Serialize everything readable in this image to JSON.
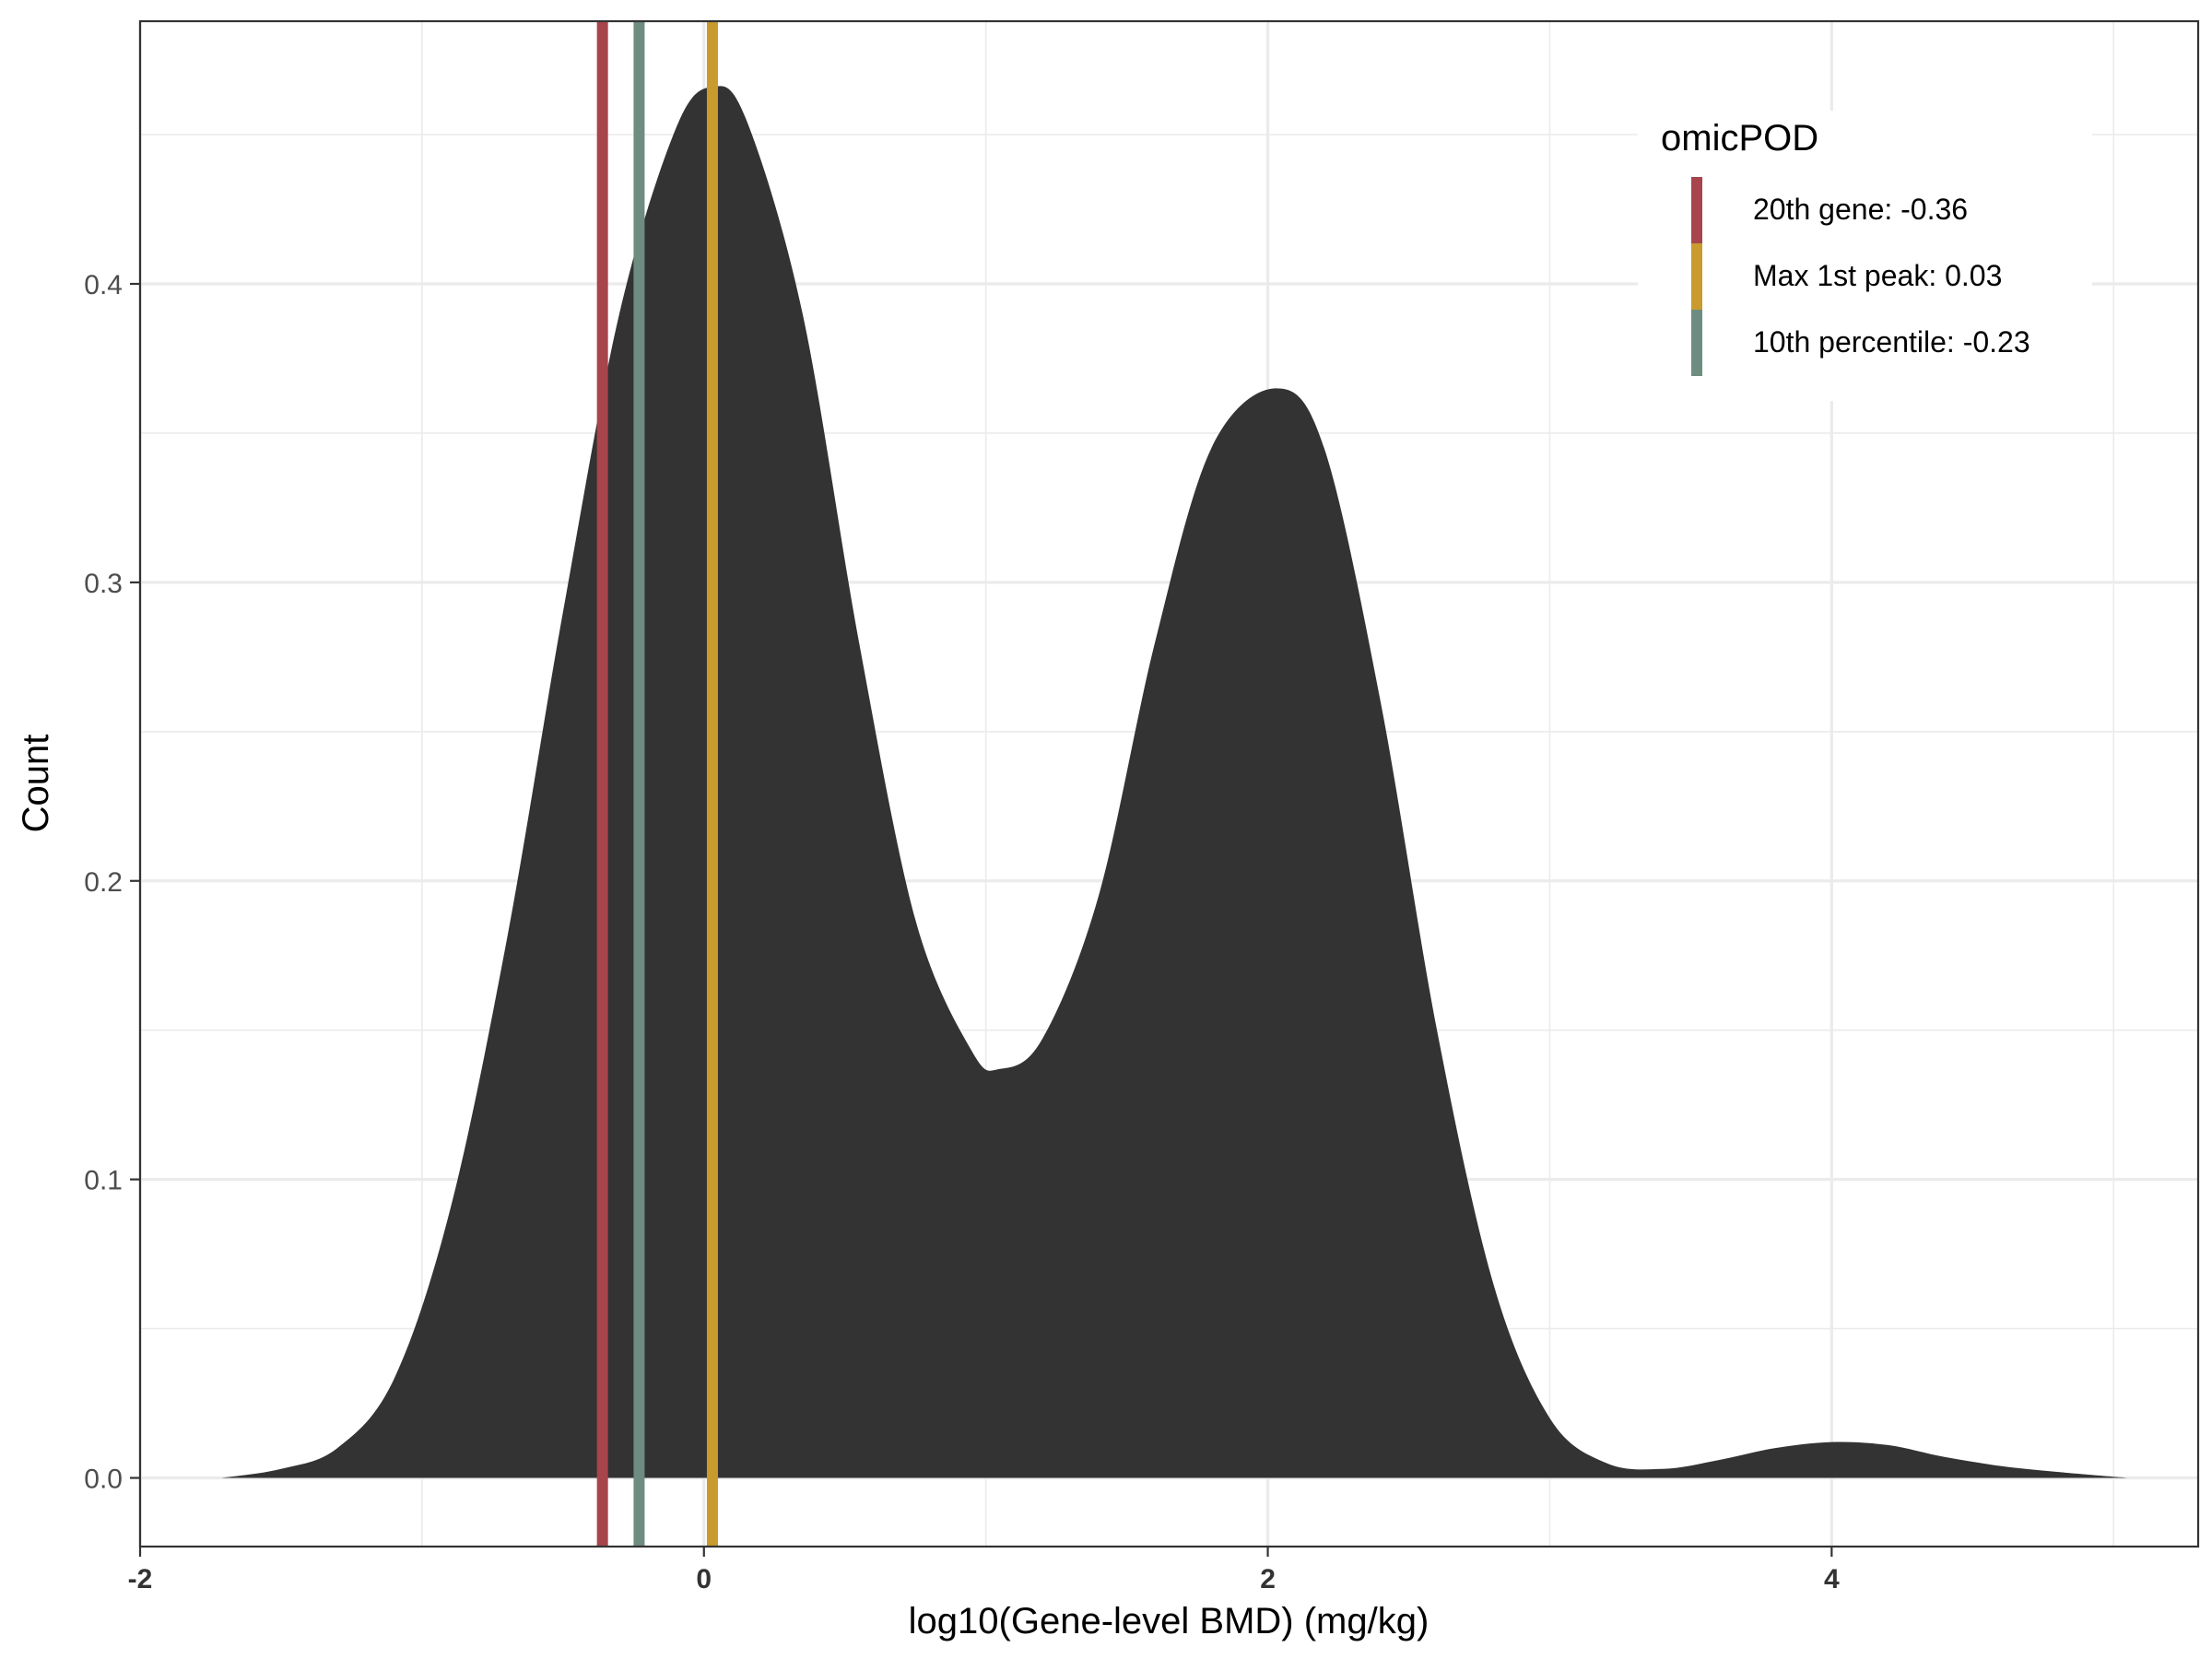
{
  "chart_data": {
    "type": "area",
    "xlabel": "log10(Gene-level BMD) (mg/kg)",
    "ylabel": "Count",
    "xlim": [
      -2.0,
      5.3
    ],
    "ylim": [
      -0.023,
      0.488
    ],
    "x_ticks": [
      -2,
      0,
      2,
      4
    ],
    "x_tick_labels": [
      "-2",
      "0",
      "2",
      "4"
    ],
    "y_ticks": [
      0.0,
      0.1,
      0.2,
      0.3,
      0.4
    ],
    "y_tick_labels": [
      "0.0",
      "0.1",
      "0.2",
      "0.3",
      "0.4"
    ],
    "x_minor_ticks": [
      -1,
      1,
      3,
      5
    ],
    "y_minor_ticks": [
      0.05,
      0.15,
      0.25,
      0.35,
      0.45
    ],
    "grid": true,
    "density_fill_color": "#333333",
    "density_points": [
      [
        -1.71,
        0.0
      ],
      [
        -1.5,
        0.003
      ],
      [
        -1.3,
        0.01
      ],
      [
        -1.1,
        0.033
      ],
      [
        -0.9,
        0.09
      ],
      [
        -0.7,
        0.18
      ],
      [
        -0.5,
        0.29
      ],
      [
        -0.3,
        0.39
      ],
      [
        -0.1,
        0.452
      ],
      [
        0.03,
        0.466
      ],
      [
        0.15,
        0.455
      ],
      [
        0.35,
        0.39
      ],
      [
        0.55,
        0.28
      ],
      [
        0.75,
        0.187
      ],
      [
        0.95,
        0.143
      ],
      [
        1.05,
        0.137
      ],
      [
        1.2,
        0.147
      ],
      [
        1.4,
        0.195
      ],
      [
        1.6,
        0.28
      ],
      [
        1.8,
        0.345
      ],
      [
        2.03,
        0.365
      ],
      [
        2.2,
        0.345
      ],
      [
        2.4,
        0.26
      ],
      [
        2.6,
        0.15
      ],
      [
        2.8,
        0.065
      ],
      [
        3.0,
        0.02
      ],
      [
        3.2,
        0.005
      ],
      [
        3.4,
        0.003
      ],
      [
        3.6,
        0.006
      ],
      [
        3.8,
        0.01
      ],
      [
        4.0,
        0.012
      ],
      [
        4.2,
        0.011
      ],
      [
        4.4,
        0.007
      ],
      [
        4.6,
        0.004
      ],
      [
        4.8,
        0.002
      ],
      [
        5.05,
        0.0
      ]
    ],
    "legend": {
      "title": "omicPOD",
      "placement": "top-right",
      "items": [
        {
          "label": "20th gene: -0.36",
          "color": "#A8444B"
        },
        {
          "label": "Max 1st peak: 0.03",
          "color": "#C99A2E"
        },
        {
          "label": "10th percentile: -0.23",
          "color": "#6E8C7F"
        }
      ]
    },
    "vlines": [
      {
        "x": -0.36,
        "color": "#A8444B"
      },
      {
        "x": -0.23,
        "color": "#6E8C7F"
      },
      {
        "x": 0.03,
        "color": "#C99A2E"
      }
    ]
  }
}
